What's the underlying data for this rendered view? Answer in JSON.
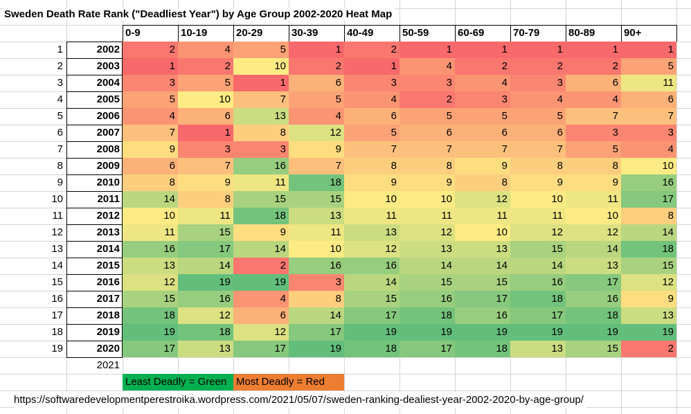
{
  "title": "Sweden Death Rate Rank (\"Deadliest Year\") by Age Group 2002-2020 Heat Map",
  "chart_data": {
    "type": "heatmap",
    "title": "Sweden Death Rate Rank (\"Deadliest Year\") by Age Group 2002-2020 Heat Map",
    "columns": [
      "0-9",
      "10-19",
      "20-29",
      "30-39",
      "40-49",
      "50-59",
      "60-69",
      "70-79",
      "80-89",
      "90+"
    ],
    "row_numbers": [
      1,
      2,
      3,
      4,
      5,
      6,
      7,
      8,
      9,
      10,
      11,
      12,
      13,
      14,
      15,
      16,
      17,
      18,
      19
    ],
    "rows": [
      "2002",
      "2003",
      "2004",
      "2005",
      "2006",
      "2007",
      "2008",
      "2009",
      "2010",
      "2011",
      "2012",
      "2013",
      "2014",
      "2015",
      "2016",
      "2017",
      "2018",
      "2019",
      "2020"
    ],
    "values": [
      [
        2,
        4,
        5,
        1,
        2,
        1,
        1,
        1,
        1,
        1
      ],
      [
        1,
        2,
        10,
        2,
        1,
        4,
        2,
        2,
        2,
        5
      ],
      [
        3,
        5,
        1,
        6,
        3,
        3,
        4,
        3,
        6,
        11
      ],
      [
        5,
        10,
        7,
        5,
        4,
        2,
        3,
        4,
        4,
        6
      ],
      [
        4,
        6,
        13,
        4,
        6,
        5,
        5,
        5,
        7,
        7
      ],
      [
        7,
        1,
        8,
        12,
        5,
        6,
        6,
        6,
        3,
        3
      ],
      [
        9,
        3,
        3,
        9,
        7,
        7,
        7,
        7,
        5,
        4
      ],
      [
        6,
        7,
        16,
        7,
        8,
        8,
        9,
        8,
        8,
        10
      ],
      [
        8,
        9,
        11,
        18,
        9,
        9,
        8,
        9,
        9,
        16
      ],
      [
        14,
        8,
        15,
        15,
        10,
        10,
        12,
        10,
        11,
        17
      ],
      [
        10,
        11,
        18,
        13,
        11,
        11,
        11,
        11,
        10,
        8
      ],
      [
        11,
        15,
        9,
        11,
        13,
        12,
        10,
        12,
        12,
        14
      ],
      [
        16,
        17,
        14,
        10,
        12,
        13,
        13,
        15,
        14,
        18
      ],
      [
        13,
        14,
        2,
        16,
        16,
        14,
        14,
        14,
        13,
        15
      ],
      [
        12,
        19,
        19,
        3,
        14,
        15,
        15,
        16,
        17,
        12
      ],
      [
        15,
        16,
        4,
        8,
        15,
        16,
        17,
        18,
        16,
        9
      ],
      [
        18,
        12,
        6,
        14,
        17,
        18,
        16,
        17,
        18,
        13
      ],
      [
        19,
        18,
        12,
        17,
        19,
        19,
        19,
        19,
        19,
        19
      ],
      [
        17,
        13,
        17,
        19,
        18,
        17,
        18,
        13,
        15,
        2
      ]
    ],
    "extra_row_label": "2021",
    "color_scale": {
      "min_color": "#f8696b",
      "mid_color": "#ffeb84",
      "max_color": "#63be7b"
    }
  },
  "legend": {
    "green_label": "Least Deadly = Green",
    "red_label": "Most Deadly = Red",
    "green_color": "#00b050",
    "red_color": "#ed7d31"
  },
  "url": "https://softwaredevelopmentperestroika.wordpress.com/2021/05/07/sweden-ranking-dealiest-year-2002-2020-by-age-group/"
}
